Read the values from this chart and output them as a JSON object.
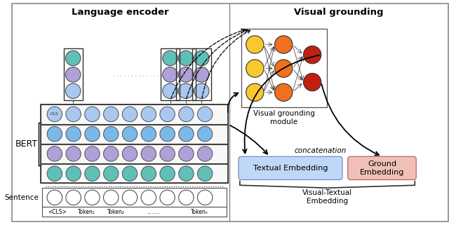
{
  "title_left": "Language encoder",
  "title_right": "Visual grounding",
  "bert_label": "BERT",
  "sentence_label": "Sentence",
  "vgm_label": "Visual grounding\nmodule",
  "textual_emb_label": "Textual Embedding",
  "ground_emb_label": "Ground\nEmbedding",
  "vte_label": "Visual-Textual\nEmbedding",
  "concat_label": "concatenation",
  "cls_label": "CLS",
  "sentence_tokens": [
    "<CLS>",
    "Token₁",
    "Token₂",
    "........",
    "Tokenₙ"
  ],
  "color_row1": "#A8C8F0",
  "color_row2": "#7AB8E8",
  "color_row3": "#B0A0D8",
  "color_row4": "#60C0B8",
  "color_white": "#FFFFFF",
  "color_textual_box": "#C0D8F8",
  "color_ground_box": "#F0C0B8",
  "color_nn_yellow": "#F8C830",
  "color_nn_orange": "#F07020",
  "color_nn_red": "#C02010",
  "color_border": "#303030",
  "color_mid_border": "#888888",
  "fig_bg": "#FFFFFF"
}
